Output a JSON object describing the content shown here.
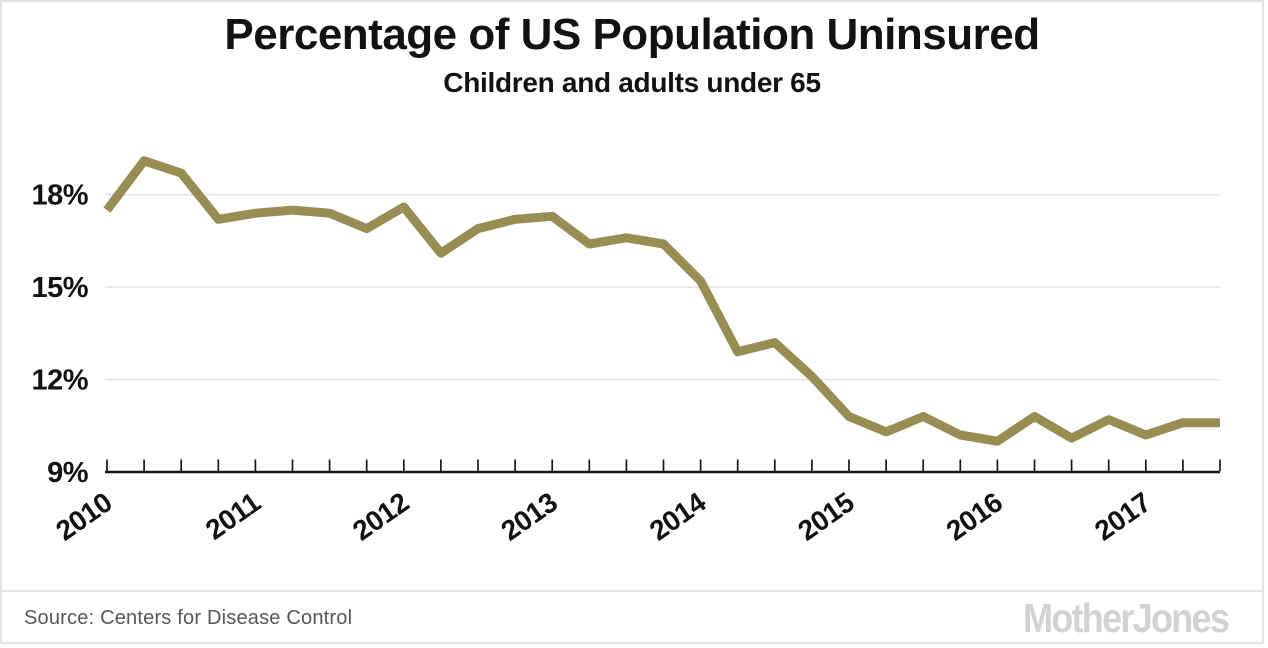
{
  "header": {
    "title": "Percentage of US Population Uninsured",
    "subtitle": "Children and adults under 65"
  },
  "footer": {
    "source": "Source:  Centers for Disease Control",
    "brand": "MotherJones"
  },
  "chart_data": {
    "type": "line",
    "title": "Percentage of US Population Uninsured",
    "subtitle": "Children and adults under 65",
    "x": [
      "2010 Q1",
      "2010 Q2",
      "2010 Q3",
      "2010 Q4",
      "2011 Q1",
      "2011 Q2",
      "2011 Q3",
      "2011 Q4",
      "2012 Q1",
      "2012 Q2",
      "2012 Q3",
      "2012 Q4",
      "2013 Q1",
      "2013 Q2",
      "2013 Q3",
      "2013 Q4",
      "2014 Q1",
      "2014 Q2",
      "2014 Q3",
      "2014 Q4",
      "2015 Q1",
      "2015 Q2",
      "2015 Q3",
      "2015 Q4",
      "2016 Q1",
      "2016 Q2",
      "2016 Q3",
      "2016 Q4",
      "2017 Q1",
      "2017 Q2",
      "2017 Q3"
    ],
    "values": [
      17.5,
      19.1,
      18.7,
      17.2,
      17.4,
      17.5,
      17.4,
      16.9,
      17.6,
      16.1,
      16.9,
      17.2,
      17.3,
      16.4,
      16.6,
      16.4,
      15.2,
      12.9,
      13.2,
      12.1,
      10.8,
      10.3,
      10.8,
      10.2,
      10.0,
      10.8,
      10.1,
      10.7,
      10.2,
      10.6,
      10.6
    ],
    "unit": "%",
    "x_tick_labels": [
      "2010",
      "2011",
      "2012",
      "2013",
      "2014",
      "2015",
      "2016",
      "2017"
    ],
    "y_ticks": [
      9,
      12,
      15,
      18
    ],
    "y_tick_labels": [
      "9%",
      "12%",
      "15%",
      "18%"
    ],
    "ylim": [
      9,
      19.8
    ],
    "grid": true,
    "legend": false,
    "line_color": "#988d53",
    "grid_color": "#e4e4e4",
    "axis_color": "#161616",
    "label_color": "#121212"
  }
}
